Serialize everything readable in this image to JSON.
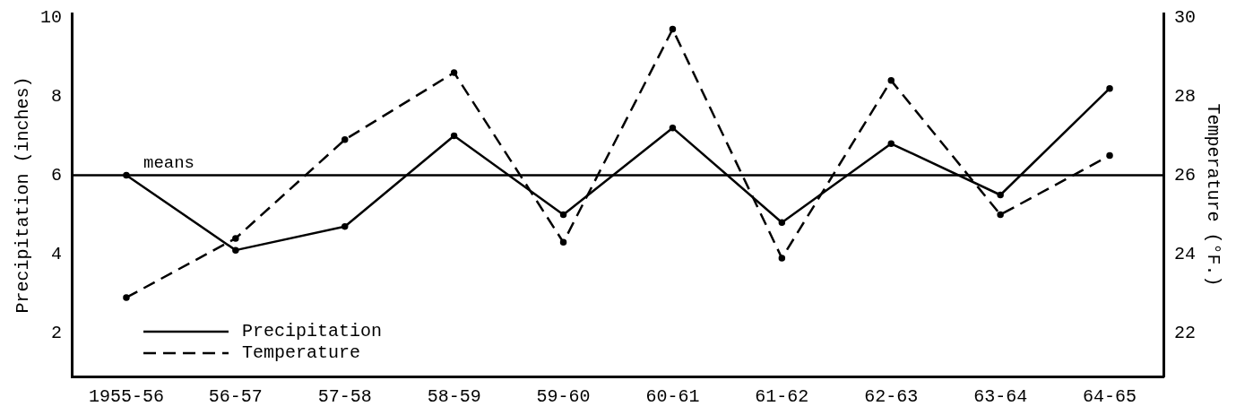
{
  "chart_data": {
    "type": "line",
    "categories": [
      "1955-56",
      "56-57",
      "57-58",
      "58-59",
      "59-60",
      "60-61",
      "61-62",
      "62-63",
      "63-64",
      "64-65"
    ],
    "series": [
      {
        "name": "Precipitation",
        "color": "#000000",
        "line_style": "solid",
        "values": [
          6.0,
          4.1,
          4.7,
          7.0,
          5.0,
          7.2,
          4.8,
          6.8,
          5.5,
          8.2
        ]
      },
      {
        "name": "Temperature",
        "color": "#000000",
        "line_style": "dashed",
        "axis": "y2",
        "values": [
          22.9,
          24.4,
          26.9,
          28.6,
          24.3,
          29.7,
          23.9,
          28.4,
          25.0,
          26.5
        ]
      }
    ],
    "ylabel": "Precipitation (inches)",
    "y2label": "Temperature (°F.)",
    "ylim": [
      0.9,
      10.1
    ],
    "yticks": [
      2,
      4,
      6,
      8,
      10
    ],
    "y2lim": [
      20.9,
      30.1
    ],
    "y2ticks": [
      22,
      24,
      26,
      28,
      30
    ],
    "ref_lines": [
      {
        "axis": "y",
        "value": 6,
        "label": "means",
        "color": "#000000"
      }
    ],
    "marker": "circle",
    "legend": "bottom left"
  }
}
